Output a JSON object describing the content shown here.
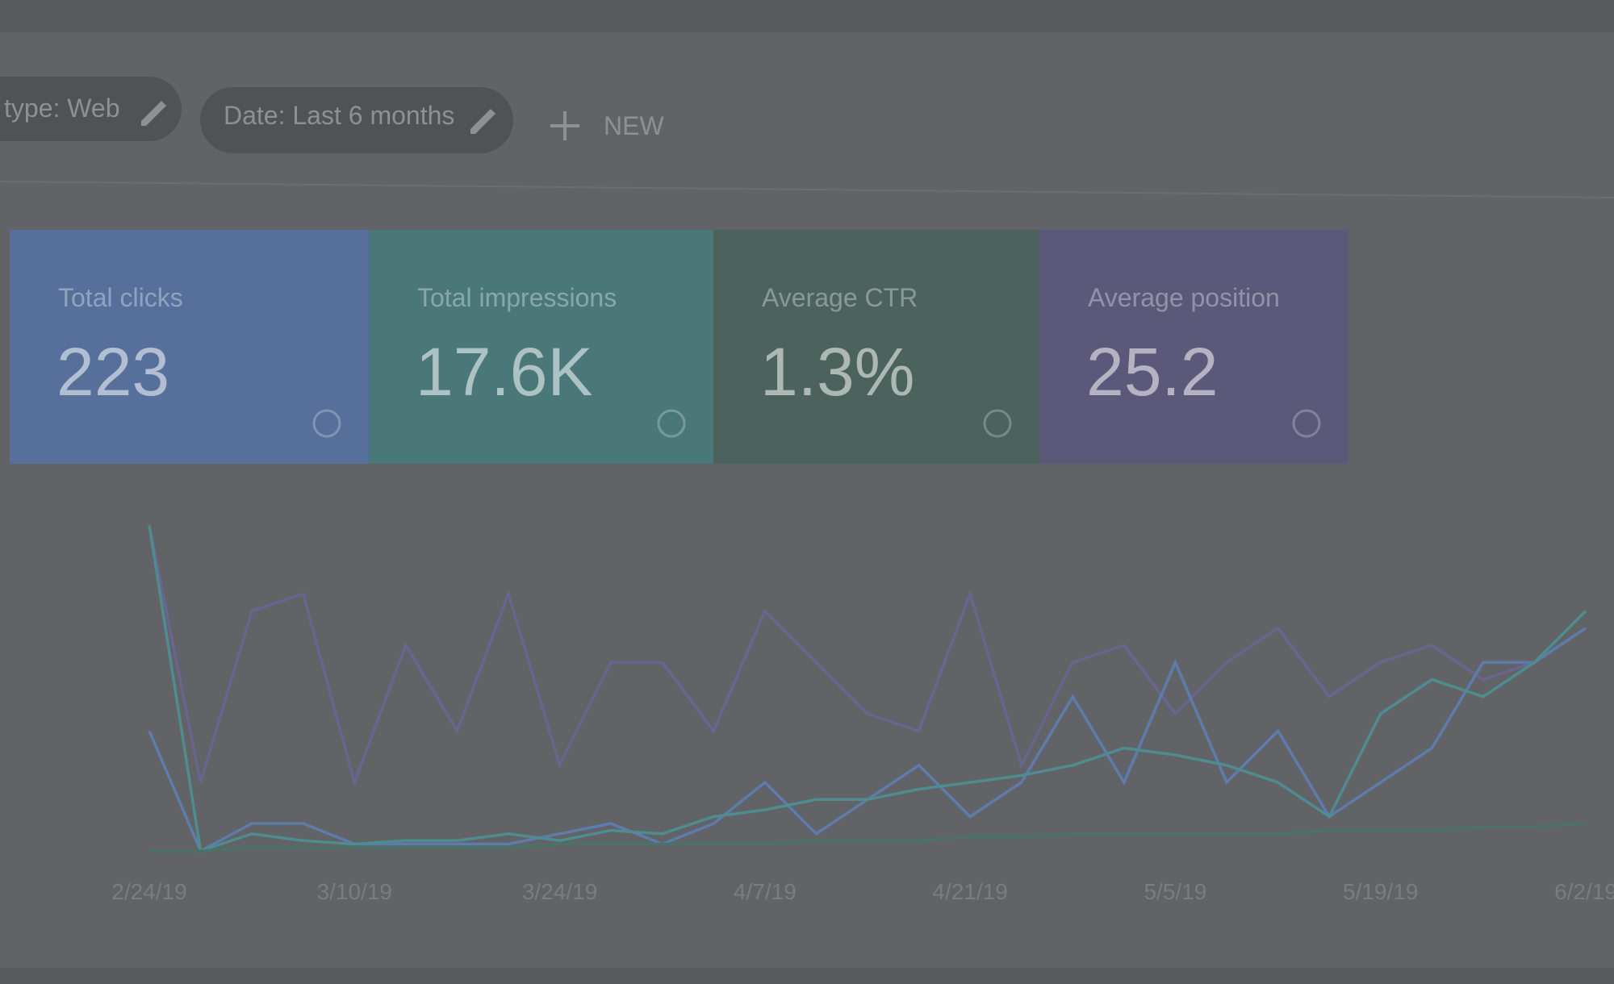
{
  "filters": [
    "type: Web",
    "Date: Last 6 months"
  ],
  "new_button": "NEW",
  "cards": [
    {
      "label": "Total clicks",
      "value": "223",
      "color": "#56709b"
    },
    {
      "label": "Total impressions",
      "value": "17.6K",
      "color": "#4a7879"
    },
    {
      "label": "Average CTR",
      "value": "1.3%",
      "color": "#4b635c"
    },
    {
      "label": "Average position",
      "value": "25.2",
      "color": "#5b5879"
    }
  ],
  "chart_data": {
    "type": "line",
    "categories": [
      "2/24/19",
      null,
      null,
      null,
      "3/10/19",
      null,
      null,
      null,
      "3/24/19",
      null,
      null,
      null,
      "4/7/19",
      null,
      null,
      null,
      "4/21/19",
      null,
      null,
      null,
      "5/5/19",
      null,
      null,
      null,
      "5/19/19",
      null,
      null,
      null,
      "6/2/19"
    ],
    "ylim": [
      0,
      100
    ],
    "series": [
      {
        "color": "#6a6590",
        "values": [
          95,
          20,
          70,
          75,
          20,
          60,
          35,
          75,
          25,
          55,
          55,
          35,
          70,
          55,
          40,
          35,
          75,
          25,
          55,
          60,
          40,
          55,
          65,
          45,
          55,
          60,
          50,
          55,
          65
        ]
      },
      {
        "color": "#5d7cab",
        "values": [
          35,
          0,
          8,
          8,
          2,
          2,
          2,
          2,
          5,
          8,
          2,
          8,
          20,
          5,
          15,
          25,
          10,
          20,
          45,
          20,
          55,
          20,
          35,
          10,
          20,
          30,
          55,
          55,
          65
        ]
      },
      {
        "color": "#4f8c90",
        "values": [
          95,
          0,
          5,
          3,
          2,
          3,
          3,
          5,
          3,
          6,
          5,
          10,
          12,
          15,
          15,
          18,
          20,
          22,
          25,
          30,
          28,
          25,
          20,
          10,
          40,
          50,
          45,
          55,
          70
        ]
      },
      {
        "color": "#4a7268",
        "values": [
          0,
          0,
          1,
          1,
          1,
          1,
          1,
          1,
          2,
          2,
          2,
          2,
          2,
          3,
          3,
          3,
          4,
          4,
          5,
          5,
          5,
          5,
          5,
          6,
          6,
          6,
          7,
          7,
          8
        ]
      }
    ]
  }
}
